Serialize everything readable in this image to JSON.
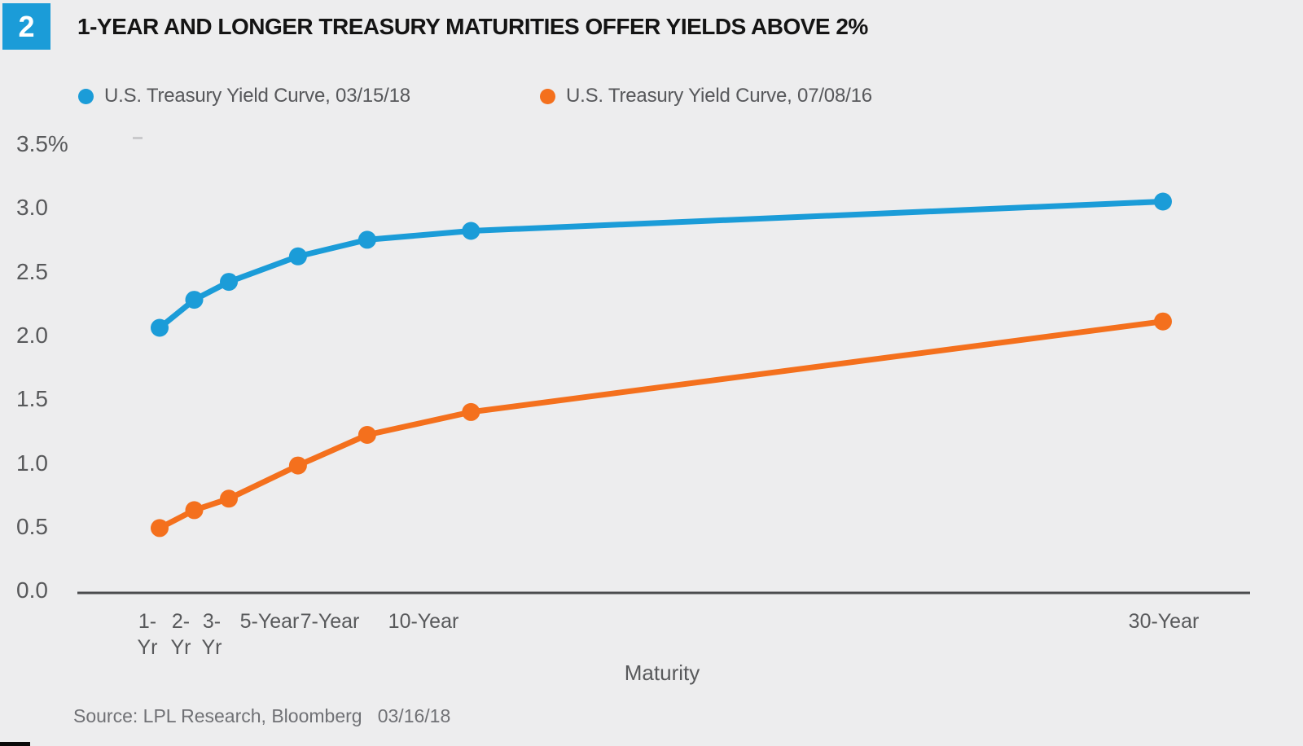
{
  "figure": {
    "badge": "2",
    "source_line": "Source: LPL Research, Bloomberg   03/16/18"
  },
  "colors": {
    "background": "#EDEDEE",
    "badge_bg": "#1B9CD8",
    "series1_blue": "#1B9CD8",
    "series2_orange": "#F4701D",
    "axis_line": "#4B4C4E",
    "tick_text": "#58595B",
    "title_text": "#141414",
    "source_text": "#707175"
  },
  "chart_data": {
    "type": "line",
    "title": "1-YEAR AND LONGER TREASURY MATURITIES OFFER YIELDS ABOVE 2%",
    "xlabel": "Maturity",
    "ylabel": "",
    "ylim": [
      0,
      3.5
    ],
    "grid": false,
    "legend_position": "top",
    "x_years": [
      1,
      2,
      3,
      5,
      7,
      10,
      30
    ],
    "categories": [
      "1-Yr",
      "2-Yr",
      "3-Yr",
      "5-Year",
      "7-Year",
      "10-Year",
      "30-Year"
    ],
    "x_tick_lines": [
      [
        "1-",
        "Yr"
      ],
      [
        "2-",
        "Yr"
      ],
      [
        "3-",
        "Yr"
      ],
      [
        "5-Year"
      ],
      [
        "7-Year"
      ],
      [
        "10-Year"
      ],
      [
        "30-Year"
      ]
    ],
    "y_tick_labels": [
      "3.5%",
      "3.0",
      "2.5",
      "2.0",
      "1.5",
      "1.0",
      "0.5",
      "0.0"
    ],
    "y_tick_values": [
      3.5,
      3.0,
      2.5,
      2.0,
      1.5,
      1.0,
      0.5,
      0.0
    ],
    "series": [
      {
        "name": "U.S. Treasury Yield Curve, 03/15/18",
        "color": "#1B9CD8",
        "values": [
          2.06,
          2.28,
          2.42,
          2.62,
          2.75,
          2.82,
          3.05
        ]
      },
      {
        "name": "U.S. Treasury Yield Curve, 07/08/16",
        "color": "#F4701D",
        "values": [
          0.49,
          0.63,
          0.72,
          0.98,
          1.22,
          1.4,
          2.11
        ]
      }
    ]
  }
}
